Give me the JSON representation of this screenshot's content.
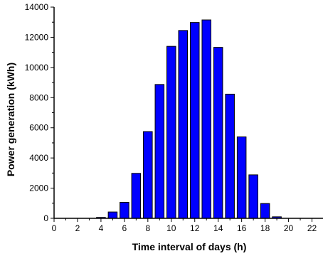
{
  "chart_data": {
    "type": "bar",
    "title": "",
    "xlabel": "Time interval of days (h)",
    "ylabel": "Power generation (kWh)",
    "xlim": [
      0,
      23
    ],
    "ylim": [
      0,
      14000
    ],
    "x_ticks": [
      0,
      2,
      4,
      6,
      8,
      10,
      12,
      14,
      16,
      18,
      20,
      22
    ],
    "y_ticks": [
      0,
      2000,
      4000,
      6000,
      8000,
      10000,
      12000,
      14000
    ],
    "grid": false,
    "legend": "none",
    "x": [
      4,
      5,
      6,
      7,
      8,
      9,
      10,
      11,
      12,
      13,
      14,
      15,
      16,
      17,
      18,
      19
    ],
    "values": [
      60,
      420,
      1060,
      2980,
      5750,
      8870,
      11400,
      12450,
      12980,
      13150,
      11330,
      8230,
      5400,
      2880,
      980,
      100
    ],
    "colors": {
      "bar_fill": "#0000ff",
      "bar_stroke": "#000000",
      "axis": "#000000"
    }
  }
}
